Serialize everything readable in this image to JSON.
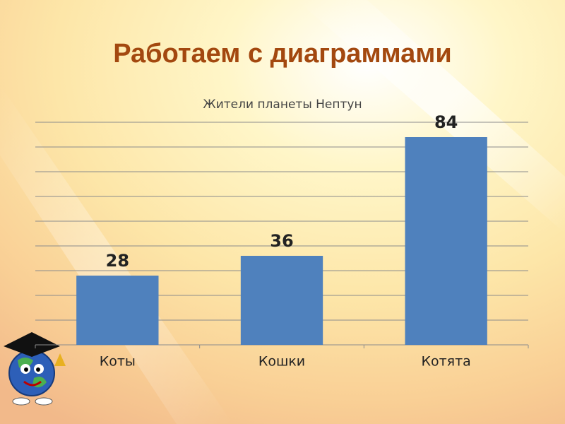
{
  "slide_title": "Работаем с диаграммами",
  "chart_data": {
    "type": "bar",
    "title": "Жители планеты Нептун",
    "categories": [
      "Коты",
      "Кошки",
      "Котята"
    ],
    "values": [
      28,
      36,
      84
    ],
    "color": "#4f81bd",
    "ylim": [
      0,
      90
    ],
    "yticks": [
      0,
      10,
      20,
      30,
      40,
      50,
      60,
      70,
      80,
      90
    ],
    "grid": true
  }
}
